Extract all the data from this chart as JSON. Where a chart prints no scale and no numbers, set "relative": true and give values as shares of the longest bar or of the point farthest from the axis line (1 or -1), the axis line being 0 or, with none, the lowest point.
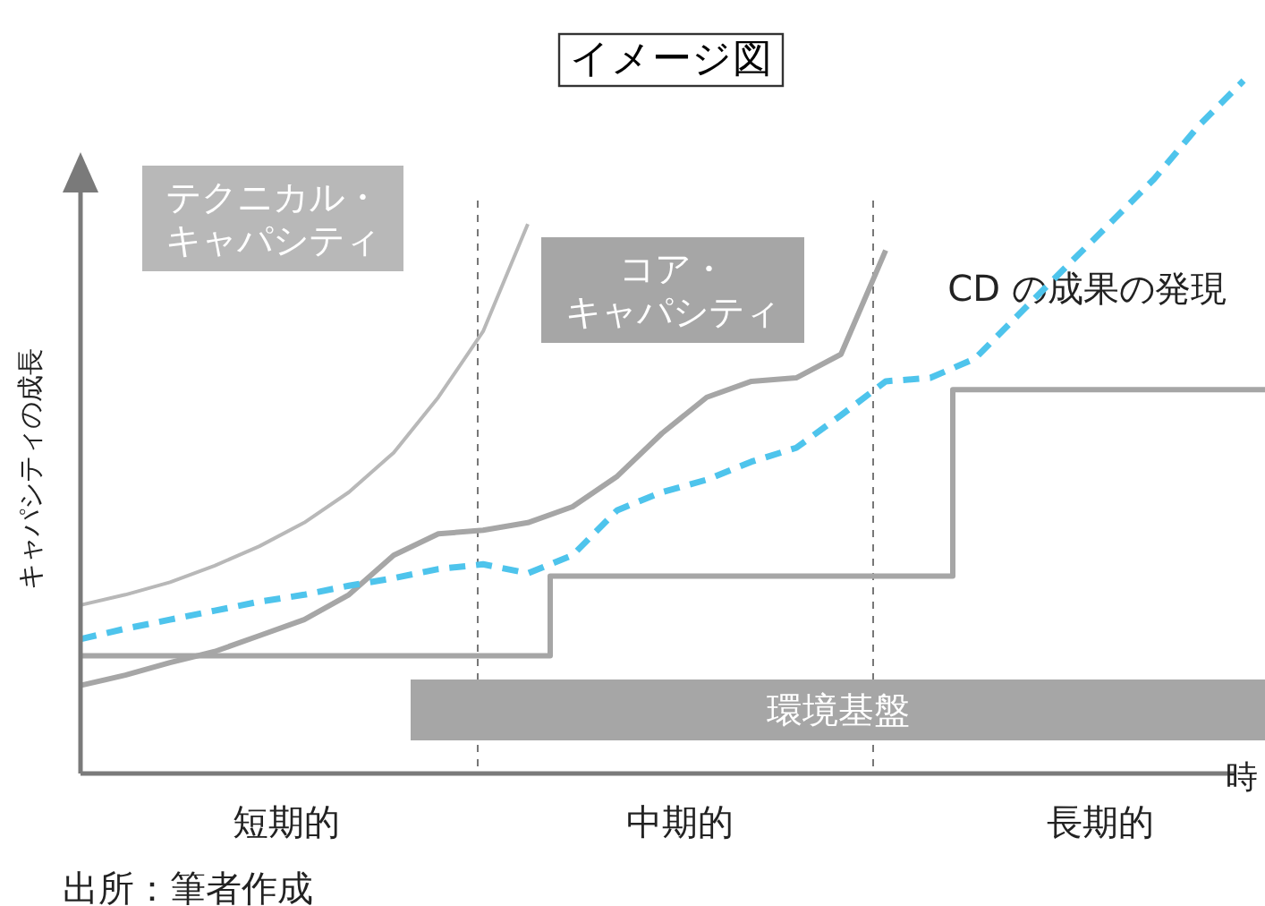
{
  "chart_data": {
    "type": "line",
    "relative": true,
    "title": "イメージ図",
    "ylabel": "キャパシティの成長",
    "xlabel": "時",
    "legend": false,
    "categories": [
      null,
      null,
      null,
      null,
      null,
      null,
      null,
      null,
      null,
      null,
      null,
      null,
      null,
      null,
      null,
      null,
      null,
      null,
      null,
      null,
      null,
      null,
      null,
      null,
      null,
      null,
      null
    ],
    "series": [
      {
        "name": "テクニカル・キャパシティ",
        "color": "#b8b8b8",
        "line_style": "solid",
        "values": [
          0.243,
          0.258,
          0.276,
          0.3,
          0.328,
          0.362,
          0.406,
          0.463,
          0.543,
          0.638,
          0.793,
          null,
          null,
          null,
          null,
          null,
          null,
          null,
          null,
          null,
          null,
          null,
          null,
          null,
          null,
          null,
          null
        ]
      },
      {
        "name": "コア・キャパシティ",
        "color": "#a6a6a6",
        "line_style": "solid",
        "values": [
          0.127,
          0.142,
          0.16,
          0.176,
          0.199,
          0.222,
          0.258,
          0.315,
          0.346,
          0.351,
          0.362,
          0.385,
          0.429,
          0.491,
          0.543,
          0.566,
          0.571,
          0.605,
          0.755,
          null,
          null,
          null,
          null,
          null,
          null,
          null,
          null
        ]
      },
      {
        "name": "CD の成果の発現",
        "color": "#4ec4ec",
        "line_style": "dashed",
        "values": [
          0.194,
          0.209,
          0.222,
          0.235,
          0.248,
          0.258,
          0.271,
          0.282,
          0.295,
          0.302,
          0.289,
          0.315,
          0.38,
          0.406,
          0.424,
          0.45,
          0.47,
          0.517,
          0.566,
          0.571,
          0.599,
          0.664,
          0.729,
          0.793,
          0.858,
          0.935,
          1
        ]
      },
      {
        "name": "環境基盤",
        "type": "step",
        "color": "#a6a6a6",
        "line_style": "solid",
        "values": [
          0.17,
          0.17,
          0.17,
          0.17,
          0.17,
          0.17,
          0.17,
          0.17,
          0.17,
          0.17,
          0.17,
          0.285,
          0.285,
          0.285,
          0.285,
          0.285,
          0.285,
          0.285,
          0.285,
          0.285,
          0.554,
          0.554,
          0.554,
          0.554,
          0.554,
          0.554,
          0.554
        ]
      }
    ],
    "annotations": [
      "短期的",
      "中期的",
      "長期的",
      "出所：筆者作成"
    ]
  }
}
